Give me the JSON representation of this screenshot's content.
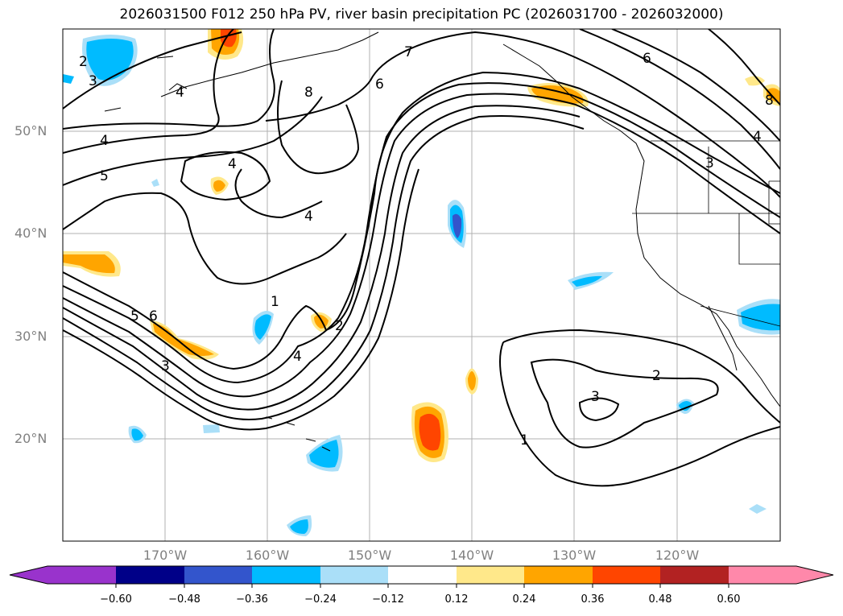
{
  "title": "2026031500 F012 250 hPa PV, river basin precipitation PC (2026031700 - 2026032000)",
  "lat_labels": [
    "50°N",
    "40°N",
    "30°N",
    "20°N"
  ],
  "lon_labels": [
    "170°W",
    "160°W",
    "150°W",
    "140°W",
    "130°W",
    "120°W"
  ],
  "contour_labels": [
    "2",
    "3",
    "4",
    "5",
    "3",
    "5",
    "6",
    "4",
    "8",
    "7",
    "6",
    "6",
    "4",
    "4",
    "1",
    "2",
    "4",
    "3",
    "1",
    "2",
    "3",
    "8",
    "4"
  ],
  "colorbar": {
    "ticks": [
      "−0.60",
      "−0.48",
      "−0.36",
      "−0.24",
      "−0.12",
      "0.12",
      "0.24",
      "0.36",
      "0.48",
      "0.60"
    ],
    "colors": [
      "#9933cc",
      "#000088",
      "#3355cc",
      "#00bbff",
      "#aadff8",
      "#ffffff",
      "#ffe88a",
      "#ffa500",
      "#ff4500",
      "#b22222",
      "#ff88aa",
      "#ff88aa"
    ]
  }
}
